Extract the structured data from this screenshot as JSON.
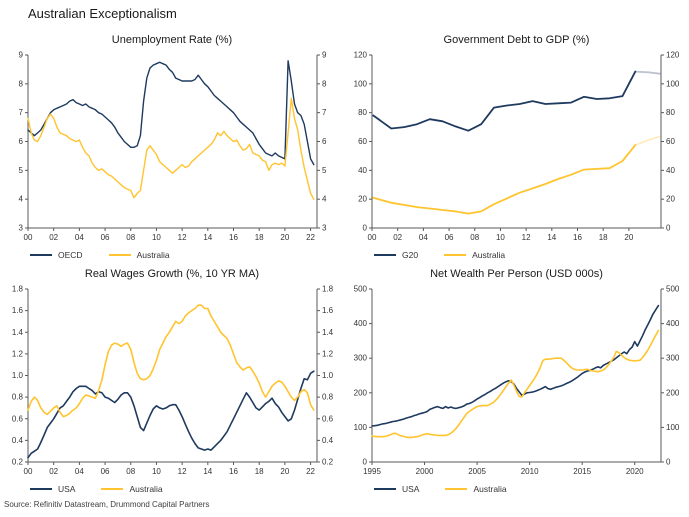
{
  "main_title": "Australian Exceptionalism",
  "source": "Source: Refinitiv Datastream, Drummond Capital Partners",
  "colors": {
    "navy": "#1F3A5F",
    "gold": "#FFC42E",
    "axis": "#595959"
  },
  "chart_data": [
    {
      "type": "line",
      "title": "Unemployment Rate (%)",
      "xlim": [
        2000,
        2022.5
      ],
      "ylim": [
        3,
        9
      ],
      "x_start": 2000,
      "x_step": 0.25,
      "xticks": [
        2000,
        2002,
        2004,
        2006,
        2008,
        2010,
        2012,
        2014,
        2016,
        2018,
        2020,
        2022
      ],
      "xtick_labels": [
        "00",
        "02",
        "04",
        "06",
        "08",
        "10",
        "12",
        "14",
        "16",
        "18",
        "20",
        "22"
      ],
      "yticks": [
        3,
        4,
        5,
        6,
        7,
        8,
        9
      ],
      "ytick_labels": [
        "3",
        "4",
        "5",
        "6",
        "7",
        "8",
        "9"
      ],
      "line_width": 1.4,
      "legend_position": "bottom-left",
      "grid": false,
      "series": [
        {
          "name": "OECD",
          "color": "#1F3A5F",
          "values": [
            6.4,
            6.3,
            6.2,
            6.3,
            6.4,
            6.6,
            6.8,
            7.0,
            7.1,
            7.15,
            7.2,
            7.25,
            7.3,
            7.4,
            7.45,
            7.35,
            7.3,
            7.25,
            7.3,
            7.2,
            7.15,
            7.1,
            7.0,
            6.95,
            6.85,
            6.75,
            6.65,
            6.5,
            6.3,
            6.15,
            6.0,
            5.9,
            5.8,
            5.8,
            5.85,
            6.2,
            7.4,
            8.2,
            8.55,
            8.65,
            8.7,
            8.75,
            8.7,
            8.65,
            8.5,
            8.4,
            8.2,
            8.15,
            8.1,
            8.1,
            8.1,
            8.1,
            8.15,
            8.3,
            8.15,
            8.0,
            7.9,
            7.75,
            7.6,
            7.5,
            7.4,
            7.3,
            7.2,
            7.1,
            7.0,
            6.85,
            6.7,
            6.6,
            6.5,
            6.4,
            6.3,
            6.1,
            5.9,
            5.75,
            5.6,
            5.55,
            5.5,
            5.6,
            5.5,
            5.45,
            5.4,
            8.8,
            8.1,
            7.3,
            7.0,
            6.9,
            6.6,
            6.0,
            5.4,
            5.2
          ]
        },
        {
          "name": "Australia",
          "color": "#FFC42E",
          "values": [
            6.8,
            6.3,
            6.05,
            6.0,
            6.2,
            6.5,
            6.8,
            6.95,
            6.8,
            6.5,
            6.3,
            6.25,
            6.2,
            6.1,
            6.05,
            6.0,
            6.05,
            5.8,
            5.6,
            5.5,
            5.25,
            5.1,
            5.0,
            5.05,
            4.95,
            4.85,
            4.8,
            4.7,
            4.6,
            4.5,
            4.4,
            4.35,
            4.3,
            4.05,
            4.2,
            4.3,
            5.0,
            5.7,
            5.85,
            5.7,
            5.55,
            5.3,
            5.2,
            5.1,
            5.0,
            4.9,
            5.0,
            5.1,
            5.2,
            5.1,
            5.15,
            5.3,
            5.4,
            5.5,
            5.6,
            5.7,
            5.8,
            5.9,
            6.05,
            6.3,
            6.2,
            6.35,
            6.2,
            6.1,
            6.0,
            6.05,
            5.85,
            5.7,
            5.75,
            5.9,
            5.6,
            5.55,
            5.5,
            5.35,
            5.3,
            5.0,
            5.2,
            5.25,
            5.2,
            5.25,
            5.15,
            6.3,
            7.5,
            6.8,
            6.4,
            5.7,
            5.1,
            4.65,
            4.2,
            4.0
          ]
        }
      ]
    },
    {
      "type": "line",
      "title": "Government Debt to GDP (%)",
      "xlim": [
        2000,
        2022.5
      ],
      "ylim": [
        0,
        120
      ],
      "xticks": [
        2000,
        2002,
        2004,
        2006,
        2008,
        2010,
        2012,
        2014,
        2016,
        2018,
        2020
      ],
      "xtick_labels": [
        "00",
        "02",
        "04",
        "06",
        "08",
        "10",
        "12",
        "14",
        "16",
        "18",
        "20"
      ],
      "yticks": [
        0,
        20,
        40,
        60,
        80,
        100,
        120
      ],
      "ytick_labels": [
        "0",
        "20",
        "40",
        "60",
        "80",
        "100",
        "120"
      ],
      "line_width": 1.8,
      "legend_position": "bottom-left",
      "grid": false,
      "series": [
        {
          "name": "G20",
          "color": "#1F3A5F",
          "fade_from": 20,
          "x": [
            2000.1,
            2001.5,
            2002.5,
            2003.5,
            2004.5,
            2005.5,
            2006.5,
            2007.5,
            2008.5,
            2009.5,
            2010.5,
            2011.5,
            2012.5,
            2013.5,
            2014.5,
            2015.5,
            2016.5,
            2017.5,
            2018.5,
            2019.5,
            2020.5,
            2021.5,
            2022.4
          ],
          "values": [
            78,
            69,
            70,
            72,
            75.5,
            74,
            70.5,
            67.5,
            72,
            83.5,
            85,
            86,
            88,
            86,
            86.5,
            87,
            91,
            89.5,
            90,
            91.5,
            108.5,
            108,
            107
          ]
        },
        {
          "name": "Australia",
          "color": "#FFC42E",
          "fade_from": 20,
          "x": [
            2000.1,
            2001.5,
            2002.5,
            2003.5,
            2004.5,
            2005.5,
            2006.5,
            2007.5,
            2008.5,
            2009.5,
            2010.5,
            2011.5,
            2012.5,
            2013.5,
            2014.5,
            2015.5,
            2016.5,
            2017.5,
            2018.5,
            2019.5,
            2020.5,
            2021.5,
            2022.4
          ],
          "values": [
            21,
            17.5,
            16,
            14.5,
            13.5,
            12.5,
            11.5,
            10,
            11.5,
            16.5,
            20.5,
            24.5,
            27.5,
            30.5,
            34,
            37,
            40.5,
            41,
            41.5,
            46.5,
            57.5,
            61,
            63.5
          ]
        }
      ]
    },
    {
      "type": "line",
      "title": "Real Wages Growth (%, 10 YR MA)",
      "xlim": [
        2000,
        2022.5
      ],
      "ylim": [
        0.2,
        1.8
      ],
      "x_start": 2000,
      "x_step": 0.25,
      "xticks": [
        2000,
        2002,
        2004,
        2006,
        2008,
        2010,
        2012,
        2014,
        2016,
        2018,
        2020,
        2022
      ],
      "xtick_labels": [
        "00",
        "02",
        "04",
        "06",
        "08",
        "10",
        "12",
        "14",
        "16",
        "18",
        "20",
        "22"
      ],
      "yticks": [
        0.2,
        0.4,
        0.6,
        0.8,
        1.0,
        1.2,
        1.4,
        1.6,
        1.8
      ],
      "ytick_labels": [
        "0.2",
        "0.4",
        "0.6",
        "0.8",
        "1.0",
        "1.2",
        "1.4",
        "1.6",
        "1.8"
      ],
      "line_width": 1.6,
      "legend_position": "bottom-left",
      "grid": false,
      "series": [
        {
          "name": "USA",
          "color": "#1F3A5F",
          "values": [
            0.24,
            0.28,
            0.3,
            0.32,
            0.38,
            0.45,
            0.52,
            0.56,
            0.6,
            0.65,
            0.7,
            0.72,
            0.76,
            0.8,
            0.85,
            0.88,
            0.9,
            0.9,
            0.9,
            0.88,
            0.86,
            0.83,
            0.85,
            0.84,
            0.8,
            0.79,
            0.77,
            0.75,
            0.78,
            0.82,
            0.84,
            0.84,
            0.8,
            0.72,
            0.62,
            0.52,
            0.49,
            0.56,
            0.63,
            0.69,
            0.72,
            0.7,
            0.69,
            0.7,
            0.72,
            0.73,
            0.73,
            0.68,
            0.62,
            0.55,
            0.48,
            0.42,
            0.37,
            0.33,
            0.32,
            0.31,
            0.32,
            0.31,
            0.34,
            0.37,
            0.4,
            0.44,
            0.48,
            0.54,
            0.6,
            0.66,
            0.72,
            0.78,
            0.84,
            0.8,
            0.75,
            0.7,
            0.68,
            0.71,
            0.74,
            0.76,
            0.79,
            0.74,
            0.71,
            0.66,
            0.62,
            0.58,
            0.6,
            0.68,
            0.78,
            0.88,
            0.97,
            0.96,
            1.02,
            1.04
          ]
        },
        {
          "name": "Australia",
          "color": "#FFC42E",
          "values": [
            0.68,
            0.76,
            0.8,
            0.77,
            0.7,
            0.66,
            0.64,
            0.67,
            0.7,
            0.72,
            0.66,
            0.62,
            0.63,
            0.65,
            0.68,
            0.7,
            0.74,
            0.79,
            0.82,
            0.81,
            0.8,
            0.79,
            0.86,
            0.96,
            1.1,
            1.22,
            1.28,
            1.3,
            1.29,
            1.27,
            1.29,
            1.3,
            1.24,
            1.12,
            1.02,
            0.97,
            0.96,
            0.97,
            1.0,
            1.06,
            1.14,
            1.24,
            1.3,
            1.36,
            1.4,
            1.45,
            1.5,
            1.48,
            1.5,
            1.55,
            1.58,
            1.6,
            1.62,
            1.65,
            1.65,
            1.62,
            1.62,
            1.55,
            1.5,
            1.45,
            1.4,
            1.37,
            1.34,
            1.28,
            1.2,
            1.12,
            1.08,
            1.05,
            1.07,
            1.08,
            1.04,
            0.99,
            0.93,
            0.85,
            0.8,
            0.85,
            0.9,
            0.93,
            0.95,
            0.94,
            0.9,
            0.85,
            0.8,
            0.77,
            0.8,
            0.85,
            0.87,
            0.84,
            0.73,
            0.68
          ]
        }
      ]
    },
    {
      "type": "line",
      "title": "Net Wealth Per Person (USD 000s)",
      "xlim": [
        1995,
        2022.5
      ],
      "ylim": [
        0,
        500
      ],
      "x_start": 1995,
      "x_step": 0.25,
      "xticks": [
        1995,
        2000,
        2005,
        2010,
        2015,
        2020
      ],
      "xtick_labels": [
        "1995",
        "2000",
        "2005",
        "2010",
        "2015",
        "2020"
      ],
      "yticks": [
        0,
        100,
        200,
        300,
        400,
        500
      ],
      "ytick_labels": [
        "0",
        "100",
        "200",
        "300",
        "400",
        "500"
      ],
      "line_width": 1.6,
      "legend_position": "bottom-left",
      "grid": false,
      "series": [
        {
          "name": "USA",
          "color": "#1F3A5F",
          "values": [
            104,
            105,
            106,
            108,
            110,
            111,
            113,
            115,
            117,
            118,
            120,
            122,
            124,
            127,
            129,
            131,
            134,
            136,
            139,
            141,
            143,
            146,
            152,
            155,
            158,
            160,
            157,
            155,
            160,
            156,
            159,
            156,
            155,
            157,
            159,
            162,
            167,
            169,
            172,
            177,
            182,
            186,
            191,
            195,
            200,
            204,
            209,
            213,
            218,
            223,
            228,
            232,
            235,
            232,
            225,
            213,
            203,
            193,
            196,
            200,
            201,
            202,
            204,
            207,
            210,
            214,
            218,
            212,
            210,
            213,
            216,
            218,
            220,
            223,
            227,
            230,
            234,
            239,
            244,
            250,
            256,
            260,
            263,
            265,
            268,
            272,
            275,
            272,
            279,
            283,
            287,
            291,
            295,
            301,
            307,
            313,
            318,
            313,
            325,
            332,
            348,
            335,
            350,
            365,
            382,
            397,
            412,
            428,
            440,
            452
          ]
        },
        {
          "name": "Australia",
          "color": "#FFC42E",
          "values": [
            75,
            74,
            73,
            73,
            73,
            74,
            76,
            79,
            82,
            83,
            79,
            76,
            74,
            72,
            71,
            71,
            72,
            73,
            75,
            78,
            80,
            82,
            80,
            79,
            78,
            77,
            77,
            77,
            77,
            79,
            83,
            89,
            97,
            107,
            118,
            129,
            140,
            146,
            151,
            156,
            160,
            162,
            163,
            163,
            163,
            167,
            171,
            178,
            186,
            196,
            207,
            218,
            228,
            237,
            222,
            205,
            190,
            188,
            200,
            210,
            221,
            232,
            243,
            257,
            272,
            293,
            297,
            297,
            298,
            299,
            300,
            300,
            300,
            294,
            287,
            279,
            272,
            268,
            266,
            266,
            266,
            267,
            268,
            265,
            263,
            262,
            261,
            263,
            266,
            272,
            281,
            291,
            302,
            320,
            316,
            308,
            302,
            297,
            294,
            293,
            292,
            293,
            294,
            302,
            312,
            324,
            338,
            352,
            366,
            380
          ]
        }
      ]
    }
  ]
}
